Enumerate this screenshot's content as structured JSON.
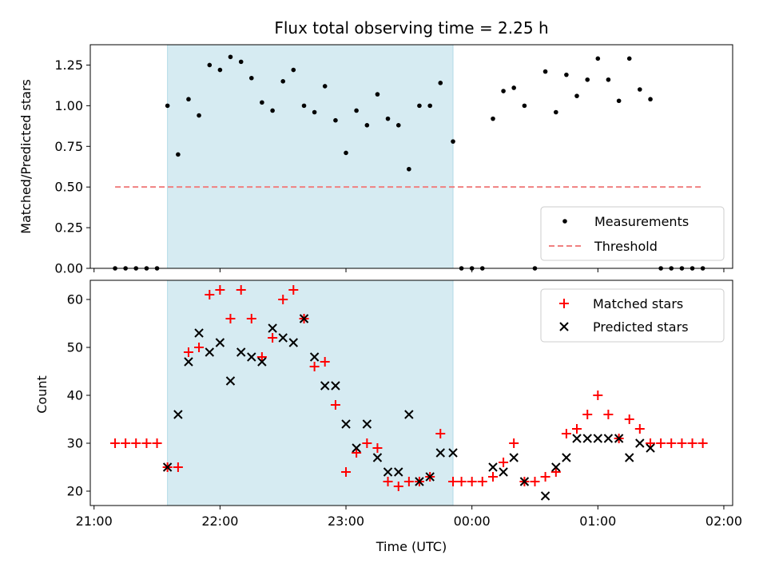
{
  "figure": {
    "title": "Flux total observing time = 2.25 h",
    "xlabel": "Time (UTC)",
    "x_tick_labels": [
      "21:00",
      "22:00",
      "23:00",
      "00:00",
      "01:00",
      "02:00"
    ]
  },
  "chart_data": [
    {
      "type": "scatter",
      "title": "Flux total observing time = 2.25 h",
      "xlabel": "",
      "ylabel": "Matched/Predicted stars",
      "ylim": [
        0,
        1.375
      ],
      "xlim_hours": [
        20.97,
        26.07
      ],
      "x_unit": "hours after 00:00 of first night (24 = 00:00 next day)",
      "y_ticks": [
        "0.00",
        "0.25",
        "0.50",
        "0.75",
        "1.00",
        "1.25"
      ],
      "shaded_interval_hours": [
        21.583,
        23.85
      ],
      "shaded_color": "#add8e6",
      "legend_position": "lower-right",
      "series": [
        {
          "name": "Measurements",
          "kind": "dot",
          "color": "#000000",
          "x": [
            21.167,
            21.25,
            21.333,
            21.417,
            21.5,
            21.583,
            21.667,
            21.75,
            21.833,
            21.917,
            22.0,
            22.083,
            22.167,
            22.25,
            22.333,
            22.417,
            22.5,
            22.583,
            22.667,
            22.75,
            22.833,
            22.917,
            23.0,
            23.083,
            23.167,
            23.25,
            23.333,
            23.417,
            23.5,
            23.583,
            23.667,
            23.75,
            23.85,
            23.917,
            24.0,
            24.083,
            24.167,
            24.25,
            24.333,
            24.417,
            24.5,
            24.583,
            24.667,
            24.75,
            24.833,
            24.917,
            25.0,
            25.083,
            25.167,
            25.25,
            25.333,
            25.417,
            25.5,
            25.583,
            25.667,
            25.75,
            25.833
          ],
          "y": [
            0,
            0,
            0,
            0,
            0,
            1.0,
            0.7,
            1.04,
            0.94,
            1.25,
            1.22,
            1.3,
            1.27,
            1.17,
            1.02,
            0.97,
            1.15,
            1.22,
            1.0,
            0.96,
            1.12,
            0.91,
            0.71,
            0.97,
            0.88,
            1.07,
            0.92,
            0.88,
            0.61,
            1.0,
            1.0,
            1.14,
            0.78,
            0,
            0,
            0,
            0.92,
            1.09,
            1.11,
            1.0,
            0,
            1.21,
            0.96,
            1.19,
            1.06,
            1.16,
            1.29,
            1.16,
            1.03,
            1.29,
            1.1,
            1.04,
            0,
            0,
            0,
            0,
            0
          ]
        },
        {
          "name": "Threshold",
          "kind": "dashed-line",
          "color": "#f08080",
          "x": [
            21.167,
            25.833
          ],
          "y": [
            0.5,
            0.5
          ]
        }
      ]
    },
    {
      "type": "scatter",
      "xlabel": "Time (UTC)",
      "ylabel": "Count",
      "ylim": [
        17,
        64
      ],
      "xlim_hours": [
        20.97,
        26.07
      ],
      "y_ticks": [
        "20",
        "30",
        "40",
        "50",
        "60"
      ],
      "shaded_interval_hours": [
        21.583,
        23.85
      ],
      "shaded_color": "#add8e6",
      "legend_position": "upper-right",
      "series": [
        {
          "name": "Matched stars",
          "kind": "plus",
          "color": "#ff0000",
          "x": [
            21.167,
            21.25,
            21.333,
            21.417,
            21.5,
            21.583,
            21.667,
            21.75,
            21.833,
            21.917,
            22.0,
            22.083,
            22.167,
            22.25,
            22.333,
            22.417,
            22.5,
            22.583,
            22.667,
            22.75,
            22.833,
            22.917,
            23.0,
            23.083,
            23.167,
            23.25,
            23.333,
            23.417,
            23.5,
            23.583,
            23.667,
            23.75,
            23.85,
            23.917,
            24.0,
            24.083,
            24.167,
            24.25,
            24.333,
            24.417,
            24.5,
            24.583,
            24.667,
            24.75,
            24.833,
            24.917,
            25.0,
            25.083,
            25.167,
            25.25,
            25.333,
            25.417,
            25.5,
            25.583,
            25.667,
            25.75,
            25.833
          ],
          "y": [
            30,
            30,
            30,
            30,
            30,
            25,
            25,
            49,
            50,
            61,
            62,
            56,
            62,
            56,
            48,
            52,
            60,
            62,
            56,
            46,
            47,
            38,
            24,
            28,
            30,
            29,
            22,
            21,
            22,
            22,
            23,
            32,
            22,
            22,
            22,
            22,
            23,
            26,
            30,
            22,
            22,
            23,
            24,
            32,
            33,
            36,
            40,
            36,
            31,
            35,
            33,
            30,
            30,
            30,
            30,
            30,
            30
          ]
        },
        {
          "name": "Predicted stars",
          "kind": "x",
          "color": "#000000",
          "x": [
            21.583,
            21.667,
            21.75,
            21.833,
            21.917,
            22.0,
            22.083,
            22.167,
            22.25,
            22.333,
            22.417,
            22.5,
            22.583,
            22.667,
            22.75,
            22.833,
            22.917,
            23.0,
            23.083,
            23.167,
            23.25,
            23.333,
            23.417,
            23.5,
            23.583,
            23.667,
            23.75,
            23.85,
            24.167,
            24.25,
            24.333,
            24.417,
            24.583,
            24.667,
            24.75,
            24.833,
            24.917,
            25.0,
            25.083,
            25.167,
            25.25,
            25.333,
            25.417
          ],
          "y": [
            25,
            36,
            47,
            53,
            49,
            51,
            43,
            49,
            48,
            47,
            54,
            52,
            51,
            56,
            48,
            42,
            42,
            34,
            29,
            34,
            27,
            24,
            24,
            36,
            22,
            23,
            28,
            28,
            25,
            24,
            27,
            22,
            19,
            25,
            27,
            31,
            31,
            31,
            31,
            31,
            27,
            30,
            29
          ]
        }
      ]
    }
  ]
}
